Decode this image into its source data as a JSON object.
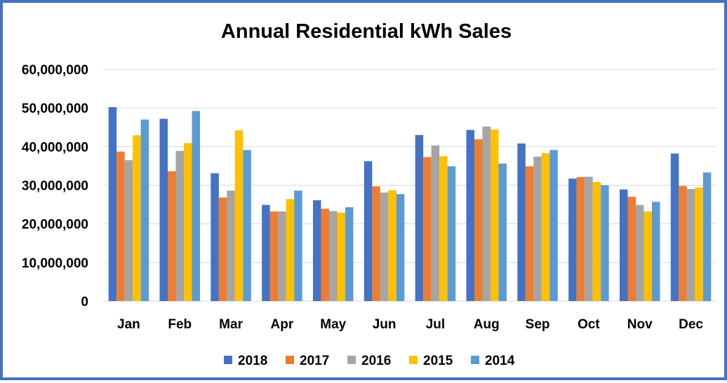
{
  "chart_data": {
    "type": "bar",
    "title": "Annual Residential kWh Sales",
    "xlabel": "",
    "ylabel": "",
    "categories": [
      "Jan",
      "Feb",
      "Mar",
      "Apr",
      "May",
      "Jun",
      "Jul",
      "Aug",
      "Sep",
      "Oct",
      "Nov",
      "Dec"
    ],
    "ylim": [
      0,
      60000000
    ],
    "yticks": [
      0,
      10000000,
      20000000,
      30000000,
      40000000,
      50000000,
      60000000
    ],
    "ytick_labels": [
      "0",
      "10,000,000",
      "20,000,000",
      "30,000,000",
      "40,000,000",
      "50,000,000",
      "60,000,000"
    ],
    "grid": true,
    "legend_position": "bottom",
    "series": [
      {
        "name": "2018",
        "color": "#4472c4",
        "values": [
          50200000,
          47200000,
          33100000,
          24900000,
          26100000,
          36200000,
          43000000,
          44300000,
          40800000,
          31700000,
          28900000,
          38200000
        ]
      },
      {
        "name": "2017",
        "color": "#ed7d31",
        "values": [
          38700000,
          33600000,
          26800000,
          23200000,
          23900000,
          29700000,
          37300000,
          41900000,
          34900000,
          32100000,
          27000000,
          29800000
        ]
      },
      {
        "name": "2016",
        "color": "#a5a5a5",
        "values": [
          36500000,
          38900000,
          28600000,
          23200000,
          23300000,
          28100000,
          40300000,
          45200000,
          37400000,
          32200000,
          24900000,
          29000000
        ]
      },
      {
        "name": "2015",
        "color": "#ffc000",
        "values": [
          42900000,
          40900000,
          44200000,
          26400000,
          22900000,
          28700000,
          37500000,
          44400000,
          38300000,
          30800000,
          23200000,
          29400000
        ]
      },
      {
        "name": "2014",
        "color": "#5b9bd5",
        "values": [
          47000000,
          49200000,
          39100000,
          28600000,
          24300000,
          27700000,
          34900000,
          35600000,
          39100000,
          30000000,
          25700000,
          33300000
        ]
      }
    ]
  }
}
